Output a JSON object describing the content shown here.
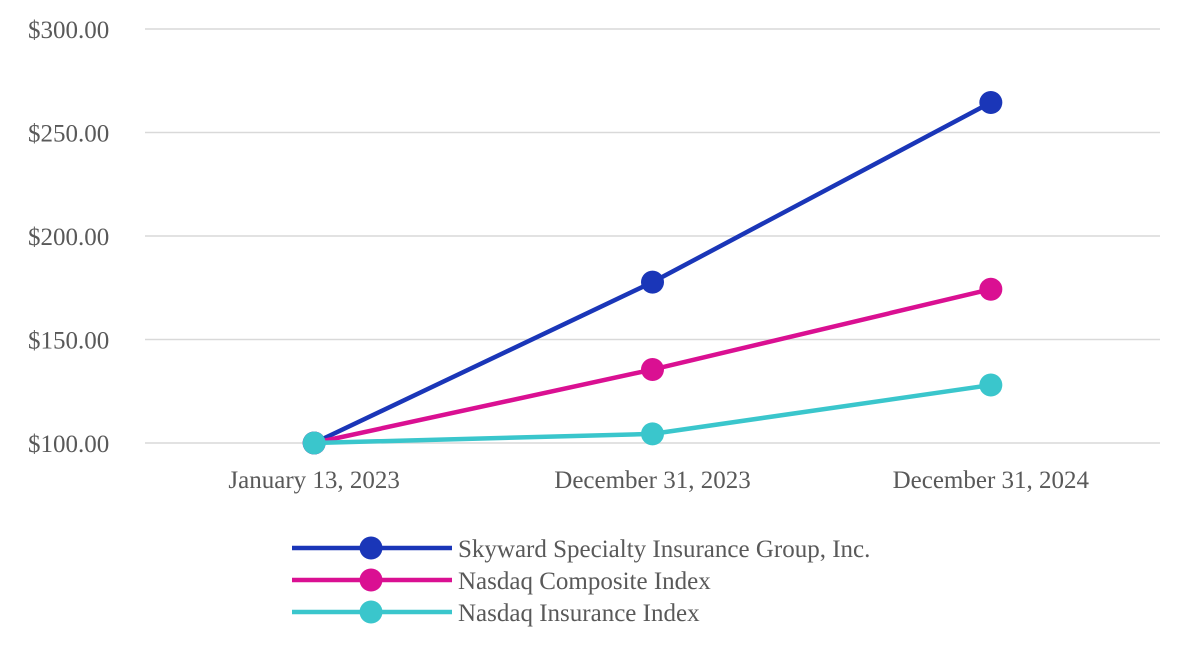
{
  "chart_data": {
    "type": "line",
    "title": "",
    "x_categories": [
      "January 13, 2023",
      "December 31, 2023",
      "December 31, 2024"
    ],
    "y_axis": {
      "range": [
        100,
        300
      ],
      "ticks": [
        {
          "value": 300,
          "label": "$300.00"
        },
        {
          "value": 250,
          "label": "$250.00"
        },
        {
          "value": 200,
          "label": "$200.00"
        },
        {
          "value": 150,
          "label": "$150.00"
        },
        {
          "value": 100,
          "label": "$100.00"
        }
      ],
      "gridlines": true
    },
    "series": [
      {
        "name": "Skyward Specialty Insurance Group, Inc.",
        "color": "#1a36b8",
        "values": [
          100.0,
          177.7,
          264.5
        ]
      },
      {
        "name": "Nasdaq Composite Index",
        "color": "#da1092",
        "values": [
          100.0,
          135.5,
          174.3
        ]
      },
      {
        "name": "Nasdaq Insurance Index",
        "color": "#3ac6cc",
        "values": [
          100.0,
          104.4,
          128.0
        ]
      }
    ],
    "marker": "circle",
    "legend_position": "bottom-left",
    "background_color": "#ffffff",
    "gridline_color": "#d9d9d9",
    "text_color": "#595959"
  }
}
